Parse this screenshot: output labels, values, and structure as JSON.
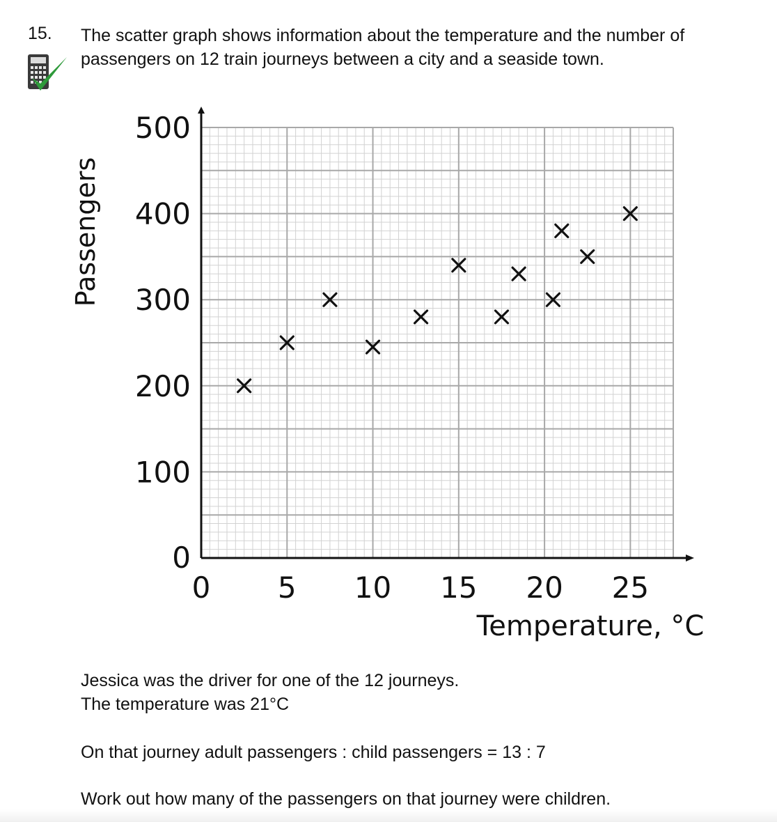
{
  "question": {
    "number": "15.",
    "line1": "The scatter graph shows information about the temperature and the number of",
    "line2": "passengers on 12 train journeys between a city and a seaside town."
  },
  "icons": {
    "calculator": "calculator-icon",
    "tick": "check-mark-icon"
  },
  "colors": {
    "tick": "#2e9a3a",
    "grid_major": "#a8a8a8",
    "grid_minor": "#d2d2d2",
    "ink": "#111111"
  },
  "chart_data": {
    "type": "scatter",
    "xlabel": "Temperature, °C",
    "ylabel": "Passengers",
    "xlim": [
      0,
      27.5
    ],
    "ylim": [
      0,
      500
    ],
    "xticks": [
      0,
      5,
      10,
      15,
      20,
      25
    ],
    "yticks": [
      0,
      100,
      200,
      300,
      400,
      500
    ],
    "grid": true,
    "marker": "cross",
    "points": [
      {
        "x": 2.5,
        "y": 200
      },
      {
        "x": 5,
        "y": 250
      },
      {
        "x": 7.5,
        "y": 300
      },
      {
        "x": 10,
        "y": 245
      },
      {
        "x": 12.8,
        "y": 280
      },
      {
        "x": 15,
        "y": 340
      },
      {
        "x": 17.5,
        "y": 280
      },
      {
        "x": 18.5,
        "y": 330
      },
      {
        "x": 20.5,
        "y": 300
      },
      {
        "x": 21,
        "y": 380
      },
      {
        "x": 22.5,
        "y": 350
      },
      {
        "x": 25,
        "y": 400
      }
    ]
  },
  "text": {
    "p1": "Jessica was the driver for one of the 12 journeys.",
    "p2": "The temperature was 21°C",
    "p3": "On that journey  adult passengers : child passengers = 13 : 7",
    "p4": "Work out how many of the passengers on that journey were children."
  }
}
